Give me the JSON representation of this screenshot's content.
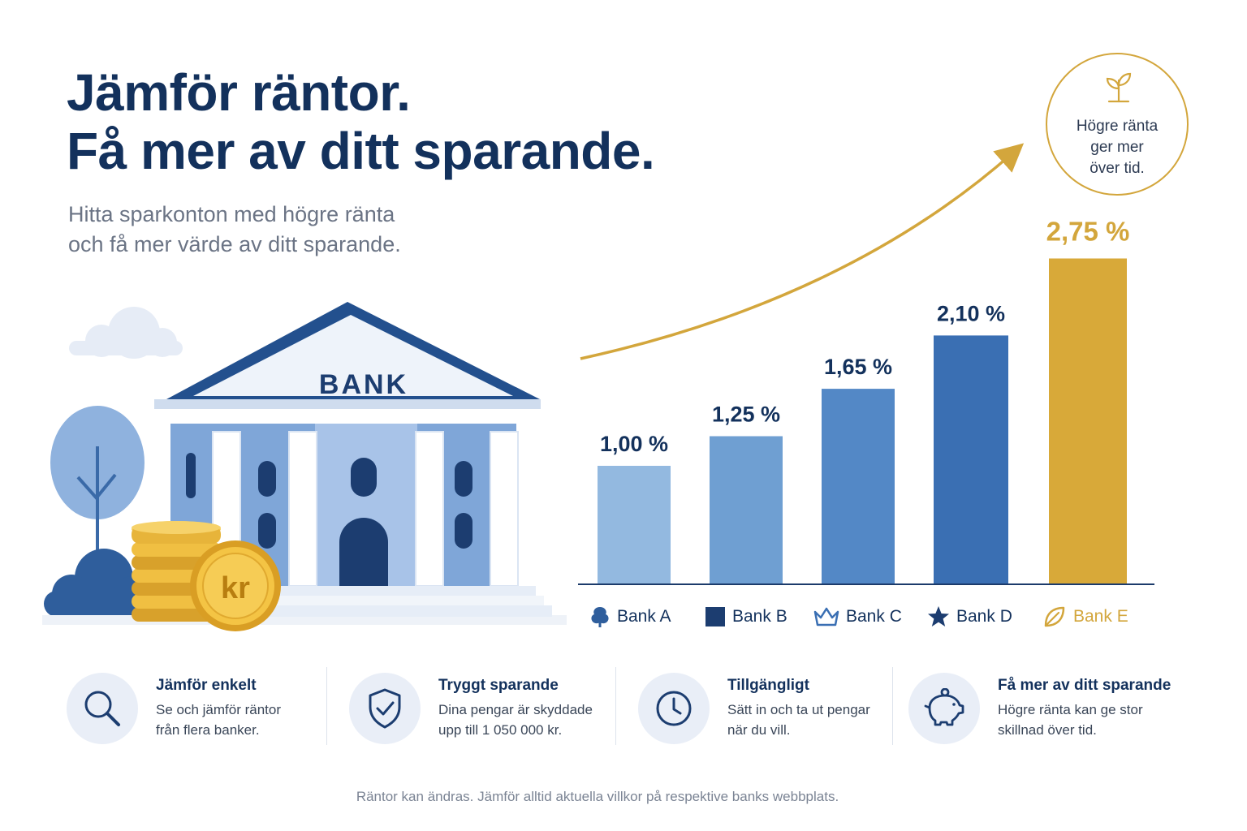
{
  "headline": {
    "line1": "Jämför räntor.",
    "line2": "Få mer av ditt sparande."
  },
  "subheadline": {
    "line1": "Hitta sparkonton med högre ränta",
    "line2": "och få mer värde av ditt sparande."
  },
  "badge": {
    "line1": "Högre ränta",
    "line2": "ger mer",
    "line3": "över tid.",
    "icon": "plant-icon",
    "color": "#d3a63c"
  },
  "illustration": {
    "bank_sign": "BANK",
    "coin_label": "kr"
  },
  "chart_data": {
    "type": "bar",
    "title": "",
    "categories": [
      "Bank A",
      "Bank B",
      "Bank C",
      "Bank D",
      "Bank E"
    ],
    "values": [
      1.0,
      1.25,
      1.65,
      2.1,
      2.75
    ],
    "value_labels": [
      "1,00 %",
      "1,25 %",
      "1,65 %",
      "2,10 %",
      "2,75 %"
    ],
    "unit": "%",
    "ylim": [
      0,
      3
    ],
    "grid": false,
    "bar_colors": [
      "#93b9e0",
      "#6f9fd2",
      "#5388c6",
      "#3a6fb3",
      "#d8a939"
    ],
    "legend_icons": [
      "tree-icon",
      "square-icon",
      "crown-icon",
      "star-icon",
      "leaf-icon"
    ],
    "legend_placement": "bottom"
  },
  "features": [
    {
      "title": "Jämför enkelt",
      "line1": "Se och jämför räntor",
      "line2": "från flera banker.",
      "icon": "search-icon"
    },
    {
      "title": "Tryggt sparande",
      "line1": "Dina pengar är skyddade",
      "line2": "upp till 1 050 000 kr.",
      "icon": "shield-check-icon"
    },
    {
      "title": "Tillgängligt",
      "line1": "Sätt in och ta ut pengar",
      "line2": "när du vill.",
      "icon": "clock-icon"
    },
    {
      "title": "Få mer av ditt sparande",
      "line1": "Högre ränta kan ge stor",
      "line2": "skillnad över tid.",
      "icon": "piggy-bank-icon"
    }
  ],
  "footer": "Räntor kan ändras. Jämför alltid aktuella villkor på respektive banks webbplats."
}
